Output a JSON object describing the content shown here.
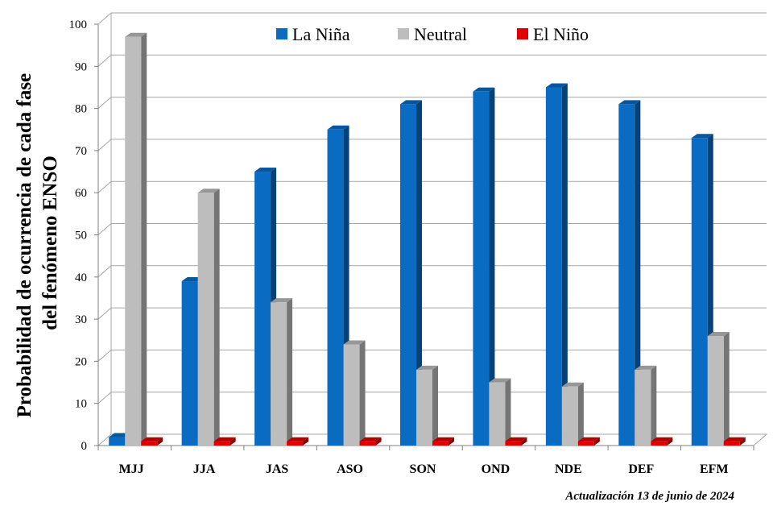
{
  "chart_data": {
    "type": "bar",
    "categories": [
      "MJJ",
      "JJA",
      "JAS",
      "ASO",
      "SON",
      "OND",
      "NDE",
      "DEF",
      "EFM"
    ],
    "series": [
      {
        "name": "La Niña",
        "color": "#0a6bc2",
        "values": [
          2,
          39,
          65,
          75,
          81,
          84,
          85,
          81,
          73
        ]
      },
      {
        "name": "Neutral",
        "color": "#bdbdbd",
        "values": [
          97,
          60,
          34,
          24,
          18,
          15,
          14,
          18,
          26
        ]
      },
      {
        "name": "El Niño",
        "color": "#e00000",
        "values": [
          1,
          1,
          1,
          1,
          1,
          1,
          1,
          1,
          1
        ]
      }
    ],
    "ylabel_lines": [
      "Probabilidad de ocurrencia  de cada fase",
      "del fenómeno ENSO"
    ],
    "ylim": [
      0,
      100
    ],
    "yticks": [
      0,
      10,
      20,
      30,
      40,
      50,
      60,
      70,
      80,
      90,
      100
    ],
    "grid": true,
    "legend_position": "top",
    "style": "3d-bar"
  },
  "footnote": "Actualización 13 de junio de 2024"
}
